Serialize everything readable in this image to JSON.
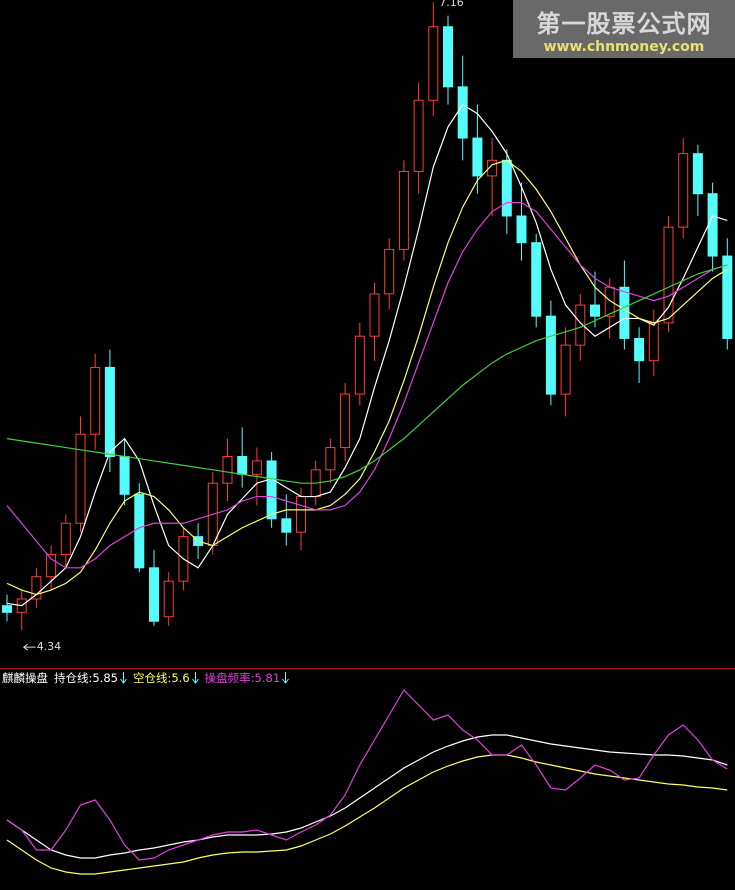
{
  "chart_data": [
    {
      "type": "candlestick",
      "ylim": [
        4.17,
        7.17
      ],
      "up_color": "#ff3b3b",
      "down_color": "#54fcfc",
      "high_label": 7.16,
      "low_label": 4.34,
      "open": [
        4.45,
        4.42,
        4.48,
        4.58,
        4.68,
        4.82,
        5.22,
        5.52,
        5.12,
        4.95,
        4.62,
        4.4,
        4.56,
        4.76,
        4.72,
        5.0,
        5.12,
        5.04,
        5.1,
        4.84,
        4.78,
        4.94,
        5.06,
        5.16,
        5.4,
        5.66,
        5.85,
        6.05,
        6.4,
        6.72,
        7.05,
        6.78,
        6.55,
        6.38,
        6.45,
        6.2,
        6.08,
        5.75,
        5.4,
        5.62,
        5.8,
        5.75,
        5.88,
        5.65,
        5.55,
        5.72,
        6.15,
        6.48,
        6.3,
        6.02
      ],
      "high": [
        4.5,
        4.52,
        4.62,
        4.72,
        4.86,
        5.3,
        5.58,
        5.6,
        5.2,
        5.0,
        4.7,
        4.6,
        4.8,
        4.82,
        5.05,
        5.2,
        5.25,
        5.16,
        5.14,
        4.95,
        4.98,
        5.1,
        5.2,
        5.45,
        5.72,
        5.9,
        6.1,
        6.45,
        6.8,
        7.16,
        7.1,
        6.92,
        6.7,
        6.55,
        6.5,
        6.35,
        6.12,
        5.82,
        5.7,
        5.85,
        5.95,
        5.92,
        6.0,
        5.7,
        5.78,
        6.2,
        6.55,
        6.52,
        6.35,
        6.1
      ],
      "low": [
        4.38,
        4.34,
        4.44,
        4.52,
        4.62,
        4.78,
        5.15,
        5.05,
        4.9,
        4.6,
        4.36,
        4.36,
        4.52,
        4.66,
        4.68,
        4.92,
        4.98,
        4.9,
        4.8,
        4.72,
        4.7,
        4.9,
        5.0,
        5.1,
        5.35,
        5.55,
        5.78,
        6.0,
        6.3,
        6.65,
        6.7,
        6.45,
        6.3,
        6.2,
        6.12,
        6.0,
        5.7,
        5.35,
        5.3,
        5.55,
        5.7,
        5.65,
        5.6,
        5.45,
        5.48,
        5.68,
        6.1,
        6.2,
        5.95,
        5.6
      ],
      "close": [
        4.42,
        4.48,
        4.58,
        4.68,
        4.82,
        5.22,
        5.52,
        5.12,
        4.95,
        4.62,
        4.38,
        4.56,
        4.76,
        4.72,
        5.0,
        5.12,
        5.04,
        5.1,
        4.84,
        4.78,
        4.94,
        5.06,
        5.16,
        5.4,
        5.66,
        5.85,
        6.05,
        6.4,
        6.72,
        7.05,
        6.78,
        6.55,
        6.38,
        6.45,
        6.2,
        6.08,
        5.75,
        5.4,
        5.62,
        5.8,
        5.75,
        5.88,
        5.65,
        5.55,
        5.72,
        6.15,
        6.48,
        6.3,
        6.02,
        5.65
      ],
      "series": [
        {
          "color": "#ffffff",
          "values": [
            4.46,
            4.45,
            4.5,
            4.56,
            4.62,
            4.76,
            4.96,
            5.14,
            5.2,
            5.1,
            4.9,
            4.72,
            4.66,
            4.62,
            4.72,
            4.86,
            4.93,
            5.0,
            5.02,
            4.98,
            4.94,
            4.94,
            4.96,
            5.07,
            5.2,
            5.43,
            5.64,
            5.88,
            6.14,
            6.42,
            6.6,
            6.7,
            6.66,
            6.58,
            6.48,
            6.33,
            6.17,
            5.96,
            5.8,
            5.72,
            5.66,
            5.7,
            5.74,
            5.74,
            5.71,
            5.79,
            5.92,
            6.06,
            6.2,
            6.18
          ]
        },
        {
          "color": "#ffff66",
          "values": [
            4.55,
            4.52,
            4.5,
            4.52,
            4.55,
            4.6,
            4.7,
            4.82,
            4.92,
            4.96,
            4.94,
            4.88,
            4.8,
            4.74,
            4.72,
            4.76,
            4.8,
            4.83,
            4.86,
            4.88,
            4.88,
            4.88,
            4.9,
            4.95,
            5.02,
            5.14,
            5.28,
            5.46,
            5.66,
            5.88,
            6.08,
            6.24,
            6.36,
            6.43,
            6.45,
            6.4,
            6.32,
            6.22,
            6.1,
            5.98,
            5.88,
            5.82,
            5.78,
            5.74,
            5.72,
            5.74,
            5.8,
            5.86,
            5.92,
            5.96
          ]
        },
        {
          "color": "#e040e0",
          "values": [
            4.9,
            4.82,
            4.74,
            4.66,
            4.62,
            4.62,
            4.66,
            4.72,
            4.76,
            4.8,
            4.82,
            4.82,
            4.82,
            4.84,
            4.86,
            4.88,
            4.92,
            4.94,
            4.94,
            4.92,
            4.9,
            4.88,
            4.88,
            4.9,
            4.96,
            5.06,
            5.2,
            5.36,
            5.54,
            5.72,
            5.9,
            6.04,
            6.14,
            6.22,
            6.26,
            6.26,
            6.22,
            6.14,
            6.06,
            5.98,
            5.92,
            5.88,
            5.86,
            5.84,
            5.82,
            5.84,
            5.88,
            5.92,
            5.96,
            5.98
          ]
        },
        {
          "color": "#40d040",
          "values": [
            5.2,
            5.19,
            5.18,
            5.17,
            5.16,
            5.15,
            5.14,
            5.13,
            5.12,
            5.11,
            5.1,
            5.09,
            5.08,
            5.07,
            5.06,
            5.05,
            5.04,
            5.03,
            5.02,
            5.01,
            5.0,
            5.0,
            5.01,
            5.03,
            5.06,
            5.1,
            5.15,
            5.2,
            5.26,
            5.32,
            5.38,
            5.44,
            5.49,
            5.54,
            5.58,
            5.61,
            5.64,
            5.66,
            5.68,
            5.7,
            5.73,
            5.76,
            5.79,
            5.82,
            5.85,
            5.88,
            5.91,
            5.94,
            5.96,
            5.98
          ]
        }
      ]
    },
    {
      "type": "line",
      "title": "麒麟操盘",
      "ylim": [
        4.6,
        6.8
      ],
      "series": [
        {
          "name": "持仓线:",
          "current": 5.85,
          "color": "#ffffff",
          "values": [
            5.3,
            5.2,
            5.1,
            5.0,
            4.95,
            4.92,
            4.92,
            4.95,
            4.97,
            5.0,
            5.02,
            5.05,
            5.08,
            5.1,
            5.13,
            5.15,
            5.15,
            5.15,
            5.16,
            5.18,
            5.22,
            5.28,
            5.34,
            5.42,
            5.52,
            5.62,
            5.72,
            5.82,
            5.9,
            5.98,
            6.04,
            6.09,
            6.13,
            6.15,
            6.15,
            6.12,
            6.09,
            6.06,
            6.04,
            6.02,
            6.0,
            5.98,
            5.97,
            5.96,
            5.95,
            5.95,
            5.94,
            5.92,
            5.9,
            5.85
          ]
        },
        {
          "name": "空仓线:",
          "current": 5.6,
          "color": "#ffff66",
          "values": [
            5.1,
            5.0,
            4.9,
            4.82,
            4.78,
            4.76,
            4.76,
            4.78,
            4.8,
            4.82,
            4.84,
            4.86,
            4.88,
            4.92,
            4.95,
            4.97,
            4.98,
            4.98,
            4.99,
            5.0,
            5.04,
            5.1,
            5.16,
            5.24,
            5.33,
            5.42,
            5.52,
            5.62,
            5.7,
            5.78,
            5.84,
            5.89,
            5.93,
            5.95,
            5.95,
            5.92,
            5.88,
            5.85,
            5.82,
            5.79,
            5.76,
            5.74,
            5.72,
            5.7,
            5.68,
            5.66,
            5.65,
            5.63,
            5.62,
            5.6
          ]
        },
        {
          "name": "操盘频率:",
          "current": 5.81,
          "color": "#e040e0",
          "values": [
            5.3,
            5.2,
            5.0,
            5.0,
            5.2,
            5.45,
            5.5,
            5.3,
            5.05,
            4.9,
            4.92,
            5.0,
            5.05,
            5.1,
            5.15,
            5.18,
            5.18,
            5.2,
            5.15,
            5.1,
            5.18,
            5.25,
            5.35,
            5.55,
            5.85,
            6.1,
            6.35,
            6.6,
            6.45,
            6.3,
            6.35,
            6.2,
            6.1,
            5.95,
            5.95,
            6.05,
            5.85,
            5.62,
            5.6,
            5.72,
            5.85,
            5.8,
            5.7,
            5.72,
            5.95,
            6.15,
            6.25,
            6.1,
            5.9,
            5.81
          ]
        }
      ]
    }
  ],
  "watermark": {
    "title": "第一股票公式网",
    "url": "www.chnmoney.com"
  }
}
